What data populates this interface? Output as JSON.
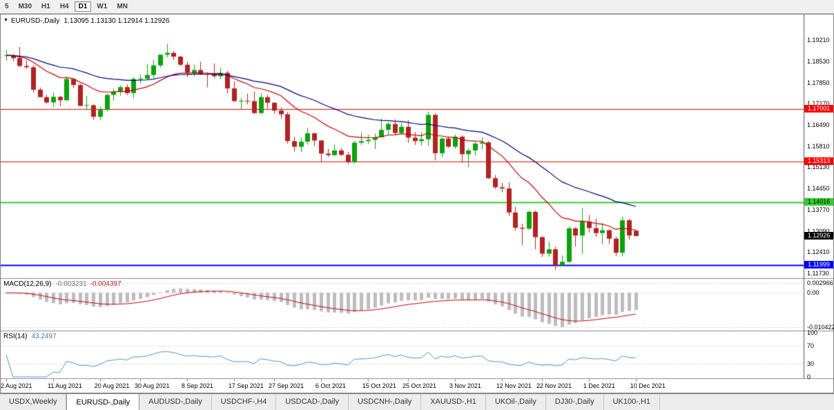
{
  "toolbar": {
    "timeframes": [
      {
        "label": "5",
        "active": false
      },
      {
        "label": "M30",
        "active": false
      },
      {
        "label": "H1",
        "active": false
      },
      {
        "label": "H4",
        "active": false
      },
      {
        "label": "D1",
        "active": true
      },
      {
        "label": "W1",
        "active": false
      },
      {
        "label": "MN",
        "active": false
      }
    ]
  },
  "chart_header": {
    "collapse_icon": "▼",
    "title": "EURUSD-,Daily",
    "ohlc": "1.13095 1.13130 1.12914 1.12926"
  },
  "price_axis": {
    "labels": [
      "1.19210",
      "1.18530",
      "1.17850",
      "1.17170",
      "1.16490",
      "1.15810",
      "1.15130",
      "1.14450",
      "1.13770",
      "1.13090",
      "1.12410",
      "1.11730"
    ],
    "range": {
      "top": 1.1992,
      "bottom": 1.1164
    }
  },
  "hlines": [
    {
      "label": "1.17001",
      "value": 1.17001,
      "color": "#ff0000",
      "text": "#ffffff",
      "lw": 1
    },
    {
      "label": "1.15313",
      "value": 1.15313,
      "color": "#ff0000",
      "text": "#ffffff",
      "lw": 1
    },
    {
      "label": "1.14016",
      "value": 1.14016,
      "color": "#32cd32",
      "text": "#000000",
      "lw": 2
    },
    {
      "label": "1.11999",
      "value": 1.11999,
      "color": "#0000ff",
      "text": "#ffffff",
      "lw": 2
    }
  ],
  "current_price": {
    "label": "1.12926",
    "value": 1.12926,
    "bg": "#000000",
    "text": "#ffffff"
  },
  "macd_panel": {
    "label": "MACD(12,26,9)",
    "value_main": "-0.003231",
    "value_signal": "-0.004397",
    "axis_labels": [
      "0.002966",
      "0.00",
      "-0.010422"
    ],
    "range": {
      "max": 0.002966,
      "min": -0.010422
    },
    "params": {
      "fast": 12,
      "slow": 26,
      "signal": 9
    }
  },
  "rsi_panel": {
    "label": "RSI(14)",
    "value": "43.2497",
    "axis_labels": [
      "100",
      "70",
      "30",
      "0"
    ],
    "levels": [
      70,
      30
    ],
    "period": 14
  },
  "tabs": [
    {
      "label": "USDX,Weekly",
      "active": false
    },
    {
      "label": "EURUSD-,Daily",
      "active": true
    },
    {
      "label": "AUDUSD-,Daily",
      "active": false
    },
    {
      "label": "USDCHF-,H4",
      "active": false
    },
    {
      "label": "USDCAD-,Daily",
      "active": false
    },
    {
      "label": "USDCNH-,Daily",
      "active": false
    },
    {
      "label": "XAUUSD-,H1",
      "active": false
    },
    {
      "label": "UKOil-,Daily",
      "active": false
    },
    {
      "label": "DJ30-,Daily",
      "active": false
    },
    {
      "label": "UK100-,H1",
      "active": false
    }
  ],
  "chart_data": {
    "type": "candlestick",
    "title": "EURUSD-,Daily",
    "price_range_visible": {
      "top": 1.1992,
      "bottom": 1.1164
    },
    "colors": {
      "up": "#0aa30a",
      "down": "#b22222",
      "ma_fast": "#cc0000",
      "ma_slow": "#000080",
      "macd_hist": "#bdbdbd",
      "macd_signal": "#cc0000",
      "rsi": "#4f94cd"
    },
    "overlays": [
      {
        "name": "ma-fast",
        "type": "ema",
        "period": 15,
        "color": "#cc0000"
      },
      {
        "name": "ma-slow",
        "type": "ema",
        "period": 34,
        "color": "#000080"
      }
    ],
    "indicators": [
      {
        "name": "MACD",
        "params": [
          12,
          26,
          9
        ]
      },
      {
        "name": "RSI",
        "params": [
          14
        ]
      }
    ],
    "x_labels": [
      {
        "text": "2 Aug 2021",
        "index": 0
      },
      {
        "text": "11 Aug 2021",
        "index": 7
      },
      {
        "text": "20 Aug 2021",
        "index": 14
      },
      {
        "text": "30 Aug 2021",
        "index": 20
      },
      {
        "text": "8 Sep 2021",
        "index": 27
      },
      {
        "text": "17 Sep 2021",
        "index": 34
      },
      {
        "text": "27 Sep 2021",
        "index": 40
      },
      {
        "text": "6 Oct 2021",
        "index": 47
      },
      {
        "text": "15 Oct 2021",
        "index": 54
      },
      {
        "text": "25 Oct 2021",
        "index": 60
      },
      {
        "text": "3 Nov 2021",
        "index": 67
      },
      {
        "text": "12 Nov 2021",
        "index": 74
      },
      {
        "text": "22 Nov 2021",
        "index": 80
      },
      {
        "text": "1 Dec 2021",
        "index": 87
      },
      {
        "text": "10 Dec 2021",
        "index": 94
      }
    ],
    "candles": [
      [
        1.187,
        1.189,
        1.1855,
        1.1872
      ],
      [
        1.1872,
        1.1876,
        1.1853,
        1.1863
      ],
      [
        1.1863,
        1.1899,
        1.1835,
        1.1838
      ],
      [
        1.1838,
        1.1858,
        1.1828,
        1.1834
      ],
      [
        1.1834,
        1.184,
        1.1753,
        1.1762
      ],
      [
        1.1762,
        1.1769,
        1.1737,
        1.1738
      ],
      [
        1.1738,
        1.1745,
        1.1717,
        1.1721
      ],
      [
        1.1721,
        1.1753,
        1.1706,
        1.1739
      ],
      [
        1.1739,
        1.1742,
        1.1709,
        1.1728
      ],
      [
        1.1728,
        1.1805,
        1.1727,
        1.1796
      ],
      [
        1.1796,
        1.1797,
        1.1767,
        1.1777
      ],
      [
        1.1777,
        1.178,
        1.1709,
        1.171
      ],
      [
        1.171,
        1.1742,
        1.17,
        1.1712
      ],
      [
        1.1712,
        1.1715,
        1.1665,
        1.1675
      ],
      [
        1.1675,
        1.1707,
        1.1664,
        1.1697
      ],
      [
        1.1697,
        1.175,
        1.1693,
        1.1745
      ],
      [
        1.1745,
        1.1765,
        1.1727,
        1.1756
      ],
      [
        1.1756,
        1.1775,
        1.1743,
        1.177
      ],
      [
        1.177,
        1.1779,
        1.1745,
        1.1751
      ],
      [
        1.1751,
        1.1802,
        1.1735,
        1.1796
      ],
      [
        1.1796,
        1.181,
        1.1781,
        1.1797
      ],
      [
        1.1797,
        1.1845,
        1.1793,
        1.1809
      ],
      [
        1.1809,
        1.1857,
        1.1799,
        1.184
      ],
      [
        1.184,
        1.1875,
        1.1833,
        1.1874
      ],
      [
        1.1874,
        1.1909,
        1.1865,
        1.188
      ],
      [
        1.188,
        1.1885,
        1.1857,
        1.1868
      ],
      [
        1.1868,
        1.187,
        1.1838,
        1.1842
      ],
      [
        1.1842,
        1.1851,
        1.1802,
        1.1816
      ],
      [
        1.1816,
        1.1842,
        1.1805,
        1.1825
      ],
      [
        1.1825,
        1.1852,
        1.1809,
        1.1813
      ],
      [
        1.1813,
        1.1818,
        1.177,
        1.181
      ],
      [
        1.181,
        1.1846,
        1.18,
        1.1805
      ],
      [
        1.1805,
        1.1832,
        1.1795,
        1.1816
      ],
      [
        1.1816,
        1.1822,
        1.175,
        1.1766
      ],
      [
        1.1766,
        1.1788,
        1.1724,
        1.1725
      ],
      [
        1.1725,
        1.1736,
        1.17,
        1.1726
      ],
      [
        1.1726,
        1.1749,
        1.1715,
        1.1725
      ],
      [
        1.1725,
        1.1756,
        1.1684,
        1.1687
      ],
      [
        1.1687,
        1.175,
        1.1683,
        1.1738
      ],
      [
        1.1738,
        1.1746,
        1.1701,
        1.172
      ],
      [
        1.172,
        1.1721,
        1.1685,
        1.1695
      ],
      [
        1.1695,
        1.1705,
        1.1668,
        1.1683
      ],
      [
        1.1683,
        1.169,
        1.1589,
        1.1597
      ],
      [
        1.1597,
        1.1611,
        1.1563,
        1.1579
      ],
      [
        1.1579,
        1.1608,
        1.1562,
        1.1595
      ],
      [
        1.1595,
        1.164,
        1.1586,
        1.1622
      ],
      [
        1.1622,
        1.1624,
        1.1581,
        1.1599
      ],
      [
        1.1599,
        1.16,
        1.1529,
        1.1557
      ],
      [
        1.1557,
        1.1572,
        1.1546,
        1.1552
      ],
      [
        1.1552,
        1.1586,
        1.1549,
        1.1567
      ],
      [
        1.1567,
        1.1575,
        1.1549,
        1.1553
      ],
      [
        1.1553,
        1.1562,
        1.1524,
        1.1529
      ],
      [
        1.1529,
        1.1597,
        1.1525,
        1.1592
      ],
      [
        1.1592,
        1.1624,
        1.1585,
        1.1597
      ],
      [
        1.1597,
        1.1618,
        1.1588,
        1.1601
      ],
      [
        1.1601,
        1.1621,
        1.1571,
        1.1609
      ],
      [
        1.1609,
        1.1669,
        1.1609,
        1.1633
      ],
      [
        1.1633,
        1.1658,
        1.1617,
        1.1652
      ],
      [
        1.1652,
        1.1667,
        1.1617,
        1.1623
      ],
      [
        1.1623,
        1.1656,
        1.162,
        1.1643
      ],
      [
        1.1643,
        1.1664,
        1.1591,
        1.1608
      ],
      [
        1.1608,
        1.1626,
        1.1585,
        1.1597
      ],
      [
        1.1597,
        1.1626,
        1.1583,
        1.1603
      ],
      [
        1.1603,
        1.1692,
        1.1582,
        1.1681
      ],
      [
        1.1681,
        1.1686,
        1.1535,
        1.1558
      ],
      [
        1.1558,
        1.1609,
        1.1545,
        1.1605
      ],
      [
        1.1605,
        1.1612,
        1.1575,
        1.1579
      ],
      [
        1.1579,
        1.1618,
        1.1573,
        1.1611
      ],
      [
        1.1611,
        1.1616,
        1.1528,
        1.1555
      ],
      [
        1.1555,
        1.1573,
        1.1513,
        1.1567
      ],
      [
        1.1567,
        1.1596,
        1.1551,
        1.1589
      ],
      [
        1.1589,
        1.1609,
        1.157,
        1.1593
      ],
      [
        1.1593,
        1.1597,
        1.1475,
        1.1478
      ],
      [
        1.1478,
        1.1488,
        1.1443,
        1.1449
      ],
      [
        1.1449,
        1.1463,
        1.1433,
        1.1445
      ],
      [
        1.1445,
        1.1464,
        1.1357,
        1.1368
      ],
      [
        1.1368,
        1.1386,
        1.131,
        1.1319
      ],
      [
        1.1319,
        1.1332,
        1.1263,
        1.1316
      ],
      [
        1.1316,
        1.1374,
        1.1312,
        1.137
      ],
      [
        1.137,
        1.1374,
        1.125,
        1.1289
      ],
      [
        1.1289,
        1.1291,
        1.1226,
        1.1236
      ],
      [
        1.1236,
        1.1275,
        1.1226,
        1.125
      ],
      [
        1.125,
        1.1258,
        1.1184,
        1.1199
      ],
      [
        1.1199,
        1.123,
        1.1195,
        1.121
      ],
      [
        1.121,
        1.1323,
        1.1206,
        1.1317
      ],
      [
        1.1317,
        1.1321,
        1.1258,
        1.1294
      ],
      [
        1.1294,
        1.1383,
        1.1235,
        1.1339
      ],
      [
        1.1339,
        1.136,
        1.1304,
        1.1318
      ],
      [
        1.1318,
        1.1348,
        1.1289,
        1.1302
      ],
      [
        1.1302,
        1.1334,
        1.1266,
        1.1311
      ],
      [
        1.1311,
        1.1314,
        1.1267,
        1.1284
      ],
      [
        1.1284,
        1.129,
        1.1228,
        1.1239
      ],
      [
        1.1239,
        1.1354,
        1.1227,
        1.1343
      ],
      [
        1.1343,
        1.1348,
        1.128,
        1.1294
      ],
      [
        1.13095,
        1.1313,
        1.12914,
        1.12926
      ]
    ]
  }
}
